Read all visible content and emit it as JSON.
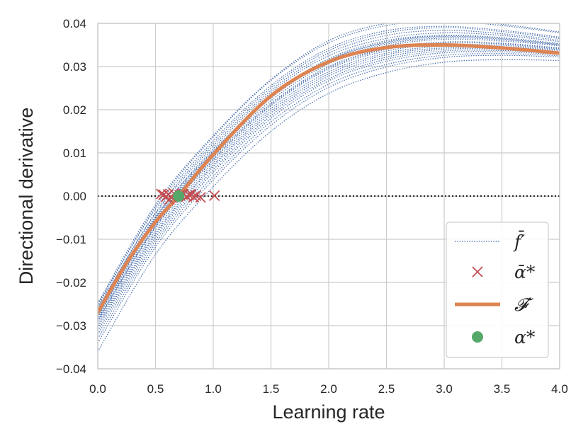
{
  "chart_data": {
    "type": "line",
    "xlabel": "Learning rate",
    "ylabel": "Directional derivative",
    "xlim": [
      0.0,
      4.0
    ],
    "ylim": [
      -0.04,
      0.04
    ],
    "grid": true,
    "x_ticks": [
      0.0,
      0.5,
      1.0,
      1.5,
      2.0,
      2.5,
      3.0,
      3.5,
      4.0
    ],
    "x_tick_labels": [
      "0.0",
      "0.5",
      "1.0",
      "1.5",
      "2.0",
      "2.5",
      "3.0",
      "3.5",
      "4.0"
    ],
    "y_ticks": [
      -0.04,
      -0.03,
      -0.02,
      -0.01,
      0.0,
      0.01,
      0.02,
      0.03,
      0.04
    ],
    "y_tick_labels": [
      "−0.04",
      "−0.03",
      "−0.02",
      "−0.01",
      "0.00",
      "0.01",
      "0.02",
      "0.03",
      "0.04"
    ],
    "reference_line": {
      "y": 0.0,
      "style": "dotted",
      "color": "#262626"
    },
    "legend": {
      "position": "lower right",
      "entries": [
        {
          "label": "f̄′",
          "marker": "dotted-line",
          "color": "#4c72b0"
        },
        {
          "label": "ᾱ*",
          "marker": "x",
          "color": "#c44e52"
        },
        {
          "label": "𝓕′",
          "marker": "thick-line",
          "color": "#dd8452"
        },
        {
          "label": "α*",
          "marker": "circle",
          "color": "#55a868"
        }
      ]
    },
    "mean_curve": {
      "name": "F'",
      "color": "#dd8452",
      "x": [
        0.0,
        0.25,
        0.5,
        0.7,
        1.0,
        1.5,
        2.0,
        2.5,
        3.0,
        3.5,
        4.0
      ],
      "y": [
        -0.027,
        -0.0155,
        -0.006,
        0.0,
        0.0096,
        0.0232,
        0.0311,
        0.0344,
        0.035,
        0.0343,
        0.0331
      ]
    },
    "mean_root": {
      "x": 0.7,
      "y": 0.0,
      "color": "#55a868"
    },
    "sample_curves": {
      "name": "f̄'",
      "color": "#4c72b0",
      "x": [
        0.0,
        0.5,
        1.0,
        1.5,
        2.0,
        2.5,
        3.0,
        3.5,
        4.0
      ],
      "series": [
        [
          -0.0255,
          -0.0025,
          0.0137,
          0.0268,
          0.0355,
          0.0395,
          0.0405,
          0.0395,
          0.0378
        ],
        [
          -0.0262,
          -0.0038,
          0.0122,
          0.0251,
          0.0337,
          0.0378,
          0.039,
          0.0381,
          0.0365
        ],
        [
          -0.027,
          -0.005,
          0.011,
          0.024,
          0.0325,
          0.0365,
          0.0378,
          0.0372,
          0.0358
        ],
        [
          -0.028,
          -0.0062,
          0.0098,
          0.0227,
          0.031,
          0.0352,
          0.0366,
          0.0362,
          0.035
        ],
        [
          -0.0265,
          -0.0047,
          0.0105,
          0.0232,
          0.0318,
          0.036,
          0.0372,
          0.0367,
          0.0353
        ],
        [
          -0.0273,
          -0.0056,
          0.01,
          0.0229,
          0.0314,
          0.0355,
          0.0369,
          0.0364,
          0.0351
        ],
        [
          -0.0285,
          -0.0068,
          0.009,
          0.0215,
          0.03,
          0.0342,
          0.0357,
          0.0354,
          0.0343
        ],
        [
          -0.0295,
          -0.008,
          0.0078,
          0.0203,
          0.0288,
          0.0331,
          0.0347,
          0.0346,
          0.0337
        ],
        [
          -0.0305,
          -0.009,
          0.0068,
          0.0192,
          0.0278,
          0.0322,
          0.034,
          0.034,
          0.0333
        ],
        [
          -0.032,
          -0.0103,
          0.0055,
          0.018,
          0.0267,
          0.0312,
          0.0332,
          0.0334,
          0.0328
        ],
        [
          -0.034,
          -0.0118,
          0.0038,
          0.0164,
          0.0252,
          0.0299,
          0.0321,
          0.0326,
          0.0322
        ],
        [
          -0.036,
          -0.0135,
          0.0022,
          0.015,
          0.0238,
          0.0286,
          0.031,
          0.0316,
          0.0314
        ],
        [
          -0.025,
          -0.003,
          0.0128,
          0.0256,
          0.0342,
          0.0383,
          0.0393,
          0.0384,
          0.0368
        ],
        [
          -0.0258,
          -0.0041,
          0.0116,
          0.0245,
          0.0331,
          0.0372,
          0.0384,
          0.0376,
          0.0361
        ],
        [
          -0.029,
          -0.0073,
          0.0083,
          0.0209,
          0.0294,
          0.0336,
          0.0351,
          0.0349,
          0.0339
        ],
        [
          -0.03,
          -0.0086,
          0.0072,
          0.0197,
          0.0283,
          0.0327,
          0.0343,
          0.0342,
          0.0334
        ],
        [
          -0.0278,
          -0.0059,
          0.0095,
          0.0221,
          0.0306,
          0.0348,
          0.0363,
          0.0359,
          0.0348
        ],
        [
          -0.0268,
          -0.0052,
          0.0103,
          0.023,
          0.0315,
          0.0357,
          0.0371,
          0.0366,
          0.0353
        ],
        [
          -0.0288,
          -0.0071,
          0.0086,
          0.0212,
          0.0297,
          0.034,
          0.0355,
          0.0352,
          0.0341
        ],
        [
          -0.0312,
          -0.0096,
          0.0061,
          0.0186,
          0.0272,
          0.0317,
          0.0336,
          0.0337,
          0.0331
        ],
        [
          -0.0248,
          -0.002,
          0.014,
          0.027,
          0.036,
          0.04,
          0.0408,
          0.0398,
          0.038
        ],
        [
          -0.033,
          -0.011,
          0.0046,
          0.0172,
          0.0259,
          0.0305,
          0.0326,
          0.033,
          0.0325
        ]
      ]
    },
    "sample_roots": {
      "name": "ᾱ*",
      "color": "#c44e52",
      "x": [
        0.55,
        0.57,
        0.59,
        0.61,
        0.62,
        0.64,
        0.66,
        0.71,
        0.74,
        0.77,
        0.79,
        0.81,
        0.83,
        0.85,
        0.89,
        1.01
      ],
      "y": [
        0.0005,
        0.0003,
        -0.0002,
        0.0004,
        -0.0008,
        -0.0003,
        0.0006,
        0.0002,
        0.0005,
        -0.0001,
        0.0003,
        0.0004,
        -0.0002,
        0.0001,
        -0.0003,
        0.0001
      ]
    }
  }
}
